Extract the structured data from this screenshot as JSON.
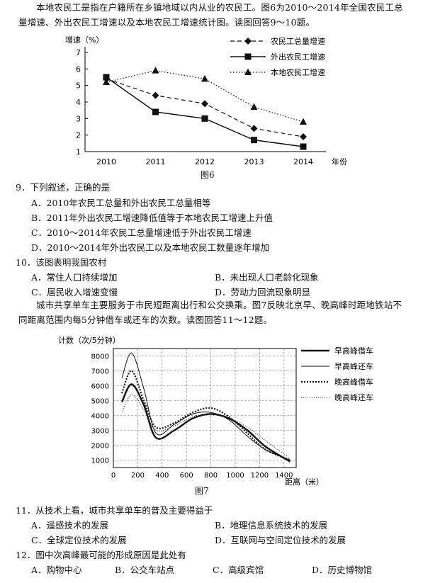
{
  "intro1": "本地农民工是指在户籍所在乡镇地域以内从业的农民工。图6为2010～2014年全国农民工总量增速、外出农民工增速以及本地农民工增速统计图。读图回答9～10题。",
  "fig6": {
    "caption": "图6",
    "chart_data": {
      "type": "line",
      "ylabel": "增速（%）",
      "xlabel": "年份",
      "x": [
        "2010",
        "2011",
        "2012",
        "2013",
        "2014"
      ],
      "ylim": [
        1,
        7
      ],
      "yticks": [
        1,
        2,
        3,
        4,
        5,
        6,
        7
      ],
      "series": [
        {
          "name": "农民工总量增速",
          "values": [
            5.4,
            4.4,
            3.9,
            2.4,
            1.9
          ]
        },
        {
          "name": "外出农民工增速",
          "values": [
            5.5,
            3.4,
            3.0,
            1.7,
            1.3
          ]
        },
        {
          "name": "本地农民工增速",
          "values": [
            5.2,
            5.9,
            5.4,
            3.7,
            2.8
          ]
        }
      ]
    }
  },
  "q9": {
    "stem": "9．下列叙述，正确的是",
    "A": "A．2010年农民工总量和外出农民工总量相等",
    "B": "B．2011年外出农民工增速降低值等于本地农民工增速上升值",
    "C": "C．2010～2014年农民工总量增速低于外出农民工增速",
    "D": "D．2010～2014年外出农民工以及本地农民工数量逐年增加"
  },
  "q10": {
    "stem": "10．该图表明我国农村",
    "A": "A．常住人口持续增加",
    "B": "B．未出现人口老龄化现象",
    "C": "C．居民收入增速变慢",
    "D": "D．劳动力回流现象明显"
  },
  "intro2": "城市共享单车主要服务于市民短距离出行和公交换乘。图7反映北京早、晚高峰时距地铁站不同距离范围内每5分钟借车或还车的次数。读图回答11～12题。",
  "fig7": {
    "caption": "图7",
    "chart_data": {
      "type": "line",
      "ylabel": "计数（次/5分钟）",
      "xlabel": "距离（米）",
      "xlim": [
        0,
        1500
      ],
      "ylim": [
        500,
        8500
      ],
      "xticks": [
        0,
        200,
        400,
        600,
        800,
        1000,
        1200,
        1400
      ],
      "yticks": [
        1000,
        2000,
        3000,
        4000,
        5000,
        6000,
        7000,
        8000
      ],
      "series": [
        {
          "name": "早高峰借车",
          "x": [
            70,
            150,
            250,
            350,
            500,
            650,
            800,
            950,
            1100,
            1250,
            1450
          ],
          "values": [
            4900,
            6100,
            4700,
            2500,
            3000,
            3800,
            4100,
            3800,
            3000,
            1900,
            900
          ]
        },
        {
          "name": "早高峰还车",
          "x": [
            70,
            150,
            250,
            350,
            500,
            650,
            800,
            950,
            1100,
            1250,
            1450
          ],
          "values": [
            6500,
            8200,
            5800,
            2800,
            3400,
            4100,
            4200,
            3700,
            2600,
            1700,
            1000
          ]
        },
        {
          "name": "晚高峰借车",
          "x": [
            70,
            150,
            250,
            350,
            500,
            650,
            800,
            950,
            1100,
            1250,
            1450
          ],
          "values": [
            5500,
            7000,
            5000,
            3200,
            3500,
            4200,
            4500,
            3900,
            2800,
            1700,
            1000
          ]
        },
        {
          "name": "晚高峰还车",
          "x": [
            70,
            150,
            250,
            350,
            500,
            650,
            800,
            950,
            1100,
            1250,
            1450
          ],
          "values": [
            4200,
            5400,
            4400,
            3000,
            3300,
            3900,
            4100,
            3800,
            3200,
            2300,
            1100
          ]
        }
      ]
    }
  },
  "q11": {
    "stem": "11．从技术上看，城市共享单车的普及主要得益于",
    "A": "A．遥感技术的发展",
    "B": "B．地理信息系统技术的发展",
    "C": "C．全球定位技术的发展",
    "D": "D．互联网与空间定位技术的发展"
  },
  "q12": {
    "stem": "12．图中次高峰最可能的形成原因是此处有",
    "A": "A．购物中心",
    "B": "B．公交车站点",
    "C": "C．高级宾馆",
    "D": "D．历史博物馆"
  }
}
